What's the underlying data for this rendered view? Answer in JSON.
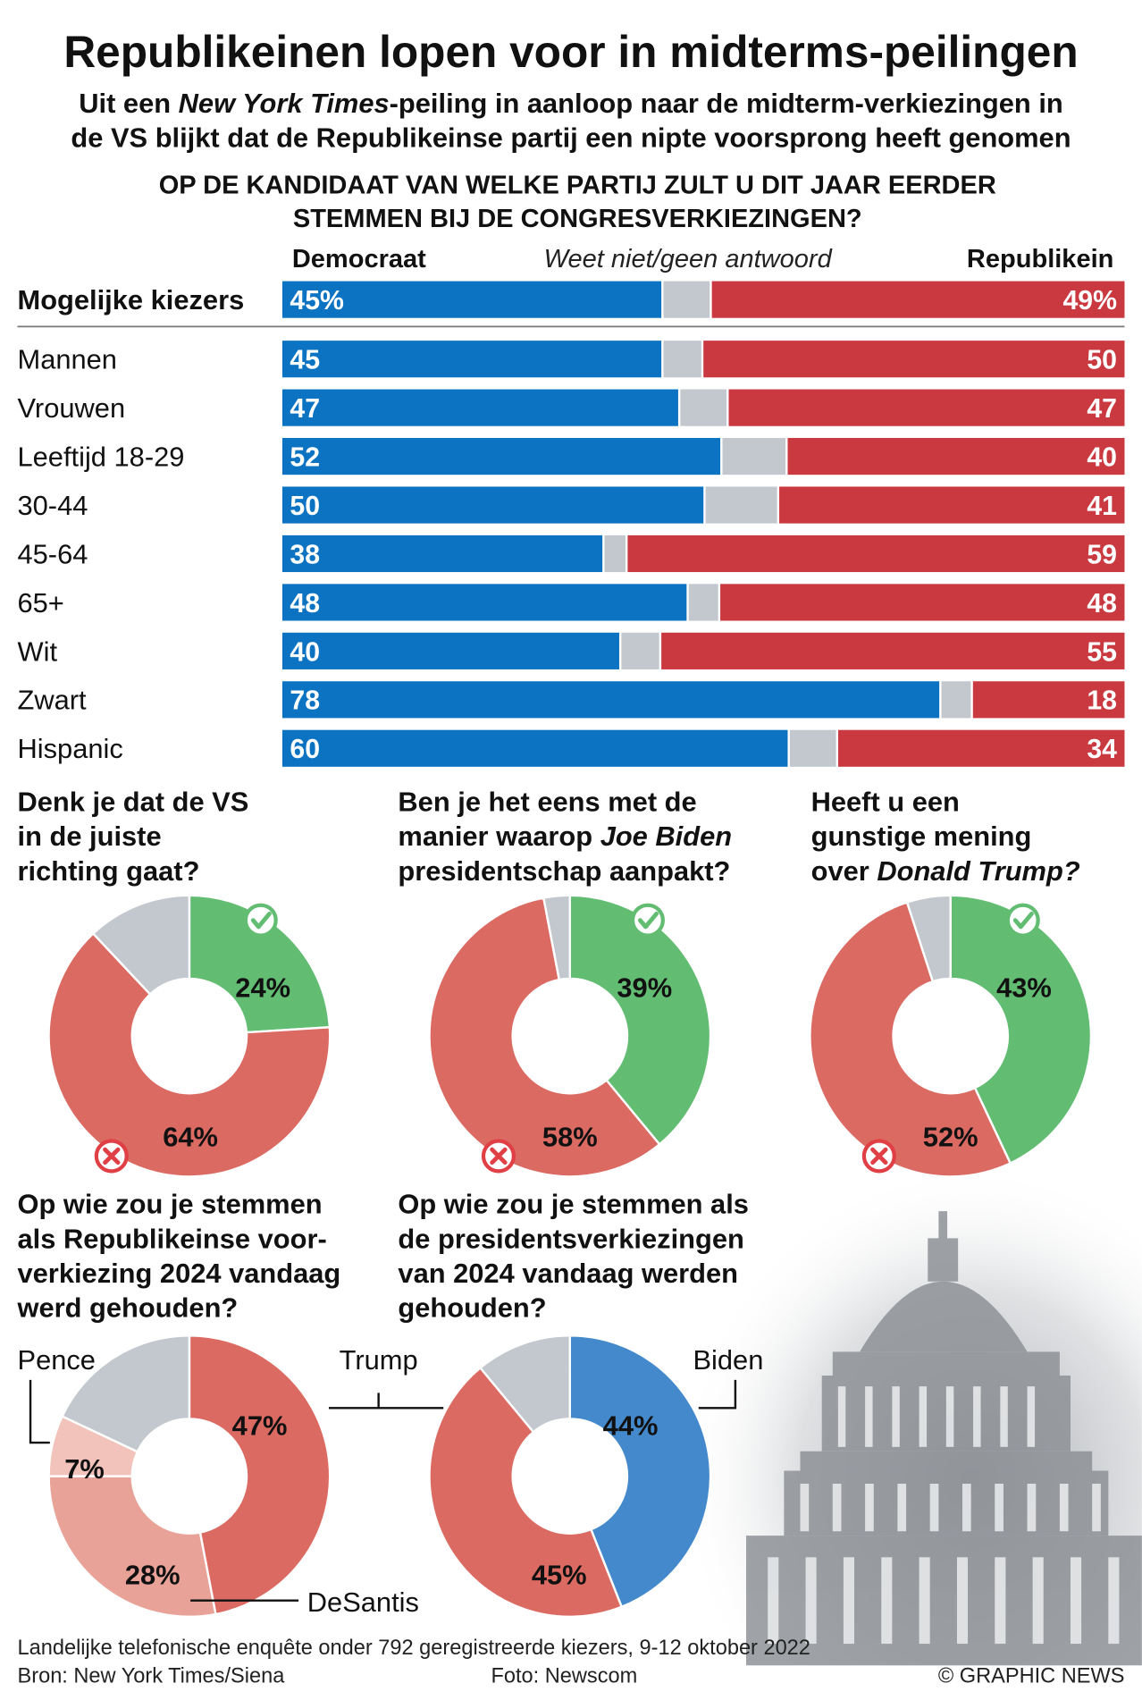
{
  "title": "Republikeinen lopen voor in midterms-peilingen",
  "intro": {
    "line1_pre": "Uit een ",
    "line1_italic": "New York Times",
    "line1_post": "-peiling in aanloop naar de midterm-verkiezingen in",
    "line2": "de VS blijkt dat de Republikeinse partij een nipte voorsprong heeft genomen"
  },
  "question": [
    "OP DE KANDIDAAT VAN WELKE PARTIJ ZULT U DIT JAAR EERDER",
    "STEMMEN BIJ DE CONGRESVERKIEZINGEN?"
  ],
  "legend": {
    "dem": "Democraat",
    "dk": "Weet niet/geen antwoord",
    "rep": "Republikein"
  },
  "colors": {
    "dem": "#0b73c2",
    "rep": "#c9393f",
    "dk": "#c3c8ce",
    "yes": "#62bd72",
    "no": "#db6a62",
    "pie_dk": "#c3c8ce",
    "desantis": "#e8a298",
    "pence": "#f2c3bb",
    "biden": "#4389cb",
    "mark": "#df3f45"
  },
  "chart_data": [
    {
      "type": "bar",
      "stacked": true,
      "orientation": "horizontal",
      "title": "OP DE KANDIDAAT VAN WELKE PARTIJ ZULT U DIT JAAR EERDER STEMMEN BIJ DE CONGRESVERKIEZINGEN?",
      "categories": [
        "Mogelijke kiezers",
        "Mannen",
        "Vrouwen",
        "Leeftijd 18-29",
        "30-44",
        "45-64",
        "65+",
        "Wit",
        "Zwart",
        "Hispanic"
      ],
      "series": [
        {
          "name": "Democraat",
          "values": [
            45,
            45,
            47,
            52,
            50,
            38,
            48,
            40,
            78,
            60
          ]
        },
        {
          "name": "Weet niet/geen antwoord",
          "values": [
            6,
            5,
            6,
            8,
            9,
            3,
            4,
            5,
            4,
            6
          ]
        },
        {
          "name": "Republikein",
          "values": [
            49,
            50,
            47,
            40,
            41,
            59,
            48,
            55,
            18,
            34
          ]
        }
      ],
      "value_labels": {
        "dem": [
          "45%",
          "45",
          "47",
          "52",
          "50",
          "38",
          "48",
          "40",
          "78",
          "60"
        ],
        "rep": [
          "49%",
          "50",
          "47",
          "40",
          "41",
          "59",
          "48",
          "55",
          "18",
          "34"
        ]
      },
      "xlim": [
        0,
        100
      ]
    },
    {
      "type": "pie",
      "donut": true,
      "question": [
        "Denk je dat de VS",
        "in de juiste",
        "richting gaat?"
      ],
      "slices": [
        {
          "key": "ja",
          "value": 24,
          "label": "24%",
          "color": "yes"
        },
        {
          "key": "nee",
          "value": 64,
          "label": "64%",
          "color": "no"
        },
        {
          "key": "weet-niet",
          "value": 12,
          "label": "",
          "color": "pie_dk"
        }
      ]
    },
    {
      "type": "pie",
      "donut": true,
      "question": [
        "Ben je het eens met de",
        "manier waarop |Joe Biden|",
        "presidentschap aanpakt?"
      ],
      "slices": [
        {
          "key": "ja",
          "value": 39,
          "label": "39%",
          "color": "yes"
        },
        {
          "key": "nee",
          "value": 58,
          "label": "58%",
          "color": "no"
        },
        {
          "key": "weet-niet",
          "value": 3,
          "label": "",
          "color": "pie_dk"
        }
      ]
    },
    {
      "type": "pie",
      "donut": true,
      "question": [
        "Heeft u een",
        "gunstige mening",
        "over |Donald Trump?|"
      ],
      "slices": [
        {
          "key": "ja",
          "value": 43,
          "label": "43%",
          "color": "yes"
        },
        {
          "key": "nee",
          "value": 52,
          "label": "52%",
          "color": "no"
        },
        {
          "key": "weet-niet",
          "value": 5,
          "label": "",
          "color": "pie_dk"
        }
      ]
    },
    {
      "type": "pie",
      "donut": true,
      "question": [
        "Op wie zou je stemmen",
        "als Republikeinse voor-",
        "verkiezing 2024 vandaag",
        "werd gehouden?"
      ],
      "slices": [
        {
          "key": "trump",
          "value": 47,
          "label": "47%",
          "color": "no"
        },
        {
          "key": "desantis",
          "value": 28,
          "label": "28%",
          "color": "desantis"
        },
        {
          "key": "pence",
          "value": 7,
          "label": "7%",
          "color": "pence"
        },
        {
          "key": "overig",
          "value": 18,
          "label": "",
          "color": "pie_dk"
        }
      ]
    },
    {
      "type": "pie",
      "donut": true,
      "question": [
        "Op wie zou je stemmen als",
        "de presidentsverkiezingen",
        "van 2024 vandaag werden",
        "gehouden?"
      ],
      "slices": [
        {
          "key": "biden",
          "value": 44,
          "label": "44%",
          "color": "biden"
        },
        {
          "key": "trump",
          "value": 45,
          "label": "45%",
          "color": "no"
        },
        {
          "key": "overig",
          "value": 11,
          "label": "",
          "color": "pie_dk"
        }
      ]
    }
  ],
  "names": {
    "pence": "Pence",
    "trump": "Trump",
    "biden": "Biden",
    "desantis": "DeSantis"
  },
  "footer": {
    "note": "Landelijke telefonische enquête onder 792 geregistreerde kiezers, 9-12 oktober 2022",
    "source": "Bron: New York Times/Siena",
    "photo": "Foto: Newscom",
    "credit": "© GRAPHIC NEWS"
  }
}
